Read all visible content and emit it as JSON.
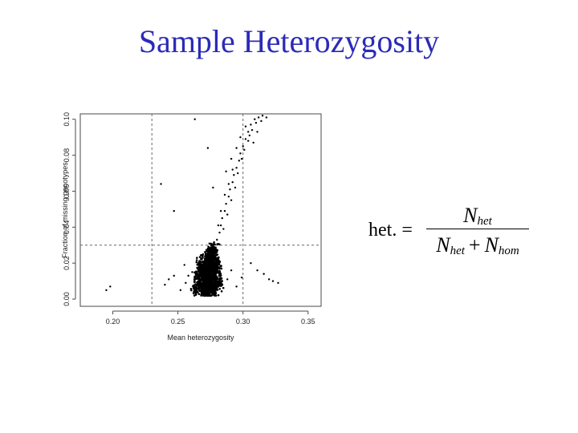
{
  "slide": {
    "title": "Sample Heterozygosity"
  },
  "formula": {
    "lhs": "het. =",
    "numerator_base": "N",
    "numerator_sub": "het",
    "denominator_base_1": "N",
    "denominator_sub_1": "het",
    "plus": "+",
    "denominator_base_2": "N",
    "denominator_sub_2": "hom"
  },
  "chart_data": {
    "type": "scatter",
    "title": "",
    "xlabel": "Mean heterozygosity",
    "ylabel": "Fraction of missing genotypes",
    "xlim": [
      0.175,
      0.36
    ],
    "ylim": [
      -0.004,
      0.103
    ],
    "xticks": [
      0.2,
      0.25,
      0.3,
      0.35
    ],
    "xtick_labels": [
      "0.20",
      "0.25",
      "0.30",
      "0.35"
    ],
    "yticks": [
      0.0,
      0.02,
      0.04,
      0.06,
      0.08,
      0.1
    ],
    "ytick_labels": [
      "0.00",
      "0.02",
      "0.04",
      "0.06",
      "0.08",
      "0.10"
    ],
    "grid": false,
    "thresholds": {
      "vertical": [
        0.23,
        0.3
      ],
      "horizontal": [
        0.03
      ]
    },
    "point_color": "#000000",
    "threshold_color": "#666666",
    "series": [
      {
        "cluster_points": [
          [
            0.27,
            0.004
          ],
          [
            0.272,
            0.006
          ],
          [
            0.274,
            0.005
          ],
          [
            0.276,
            0.008
          ],
          [
            0.271,
            0.01
          ],
          [
            0.275,
            0.012
          ],
          [
            0.278,
            0.007
          ],
          [
            0.268,
            0.008
          ],
          [
            0.273,
            0.014
          ],
          [
            0.277,
            0.016
          ],
          [
            0.27,
            0.018
          ],
          [
            0.274,
            0.02
          ],
          [
            0.279,
            0.011
          ],
          [
            0.266,
            0.012
          ],
          [
            0.272,
            0.022
          ],
          [
            0.276,
            0.024
          ],
          [
            0.28,
            0.018
          ],
          [
            0.269,
            0.016
          ],
          [
            0.275,
            0.026
          ],
          [
            0.278,
            0.028
          ],
          [
            0.271,
            0.003
          ],
          [
            0.277,
            0.004
          ],
          [
            0.264,
            0.006
          ],
          [
            0.282,
            0.009
          ],
          [
            0.267,
            0.019
          ],
          [
            0.273,
            0.009
          ],
          [
            0.279,
            0.021
          ],
          [
            0.27,
            0.013
          ],
          [
            0.276,
            0.019
          ],
          [
            0.274,
            0.017
          ]
        ],
        "scattered_points": [
          [
            0.195,
            0.005
          ],
          [
            0.198,
            0.007
          ],
          [
            0.24,
            0.008
          ],
          [
            0.243,
            0.011
          ],
          [
            0.247,
            0.013
          ],
          [
            0.252,
            0.005
          ],
          [
            0.256,
            0.009
          ],
          [
            0.258,
            0.013
          ],
          [
            0.261,
            0.015
          ],
          [
            0.255,
            0.019
          ],
          [
            0.288,
            0.011
          ],
          [
            0.291,
            0.016
          ],
          [
            0.295,
            0.007
          ],
          [
            0.299,
            0.012
          ],
          [
            0.306,
            0.02
          ],
          [
            0.311,
            0.016
          ],
          [
            0.316,
            0.014
          ],
          [
            0.32,
            0.011
          ],
          [
            0.323,
            0.01
          ],
          [
            0.327,
            0.009
          ],
          [
            0.247,
            0.049
          ],
          [
            0.237,
            0.064
          ],
          [
            0.263,
            0.1
          ],
          [
            0.28,
            0.033
          ],
          [
            0.282,
            0.037
          ],
          [
            0.283,
            0.041
          ],
          [
            0.284,
            0.045
          ],
          [
            0.286,
            0.049
          ],
          [
            0.287,
            0.053
          ],
          [
            0.289,
            0.057
          ],
          [
            0.29,
            0.061
          ],
          [
            0.292,
            0.065
          ],
          [
            0.293,
            0.069
          ],
          [
            0.295,
            0.073
          ],
          [
            0.297,
            0.077
          ],
          [
            0.298,
            0.081
          ],
          [
            0.3,
            0.085
          ],
          [
            0.302,
            0.089
          ],
          [
            0.304,
            0.093
          ],
          [
            0.306,
            0.097
          ],
          [
            0.309,
            0.1
          ],
          [
            0.312,
            0.101
          ],
          [
            0.315,
            0.102
          ],
          [
            0.318,
            0.101
          ],
          [
            0.285,
            0.039
          ],
          [
            0.288,
            0.047
          ],
          [
            0.291,
            0.055
          ],
          [
            0.294,
            0.062
          ],
          [
            0.296,
            0.07
          ],
          [
            0.299,
            0.078
          ],
          [
            0.301,
            0.083
          ],
          [
            0.304,
            0.088
          ],
          [
            0.307,
            0.094
          ],
          [
            0.31,
            0.098
          ],
          [
            0.273,
            0.084
          ],
          [
            0.277,
            0.062
          ],
          [
            0.281,
            0.041
          ],
          [
            0.286,
            0.058
          ],
          [
            0.289,
            0.064
          ],
          [
            0.292,
            0.072
          ],
          [
            0.295,
            0.084
          ],
          [
            0.298,
            0.09
          ],
          [
            0.302,
            0.096
          ],
          [
            0.305,
            0.091
          ],
          [
            0.308,
            0.087
          ],
          [
            0.311,
            0.093
          ],
          [
            0.314,
            0.099
          ],
          [
            0.283,
            0.049
          ],
          [
            0.287,
            0.071
          ],
          [
            0.291,
            0.078
          ]
        ]
      }
    ]
  }
}
